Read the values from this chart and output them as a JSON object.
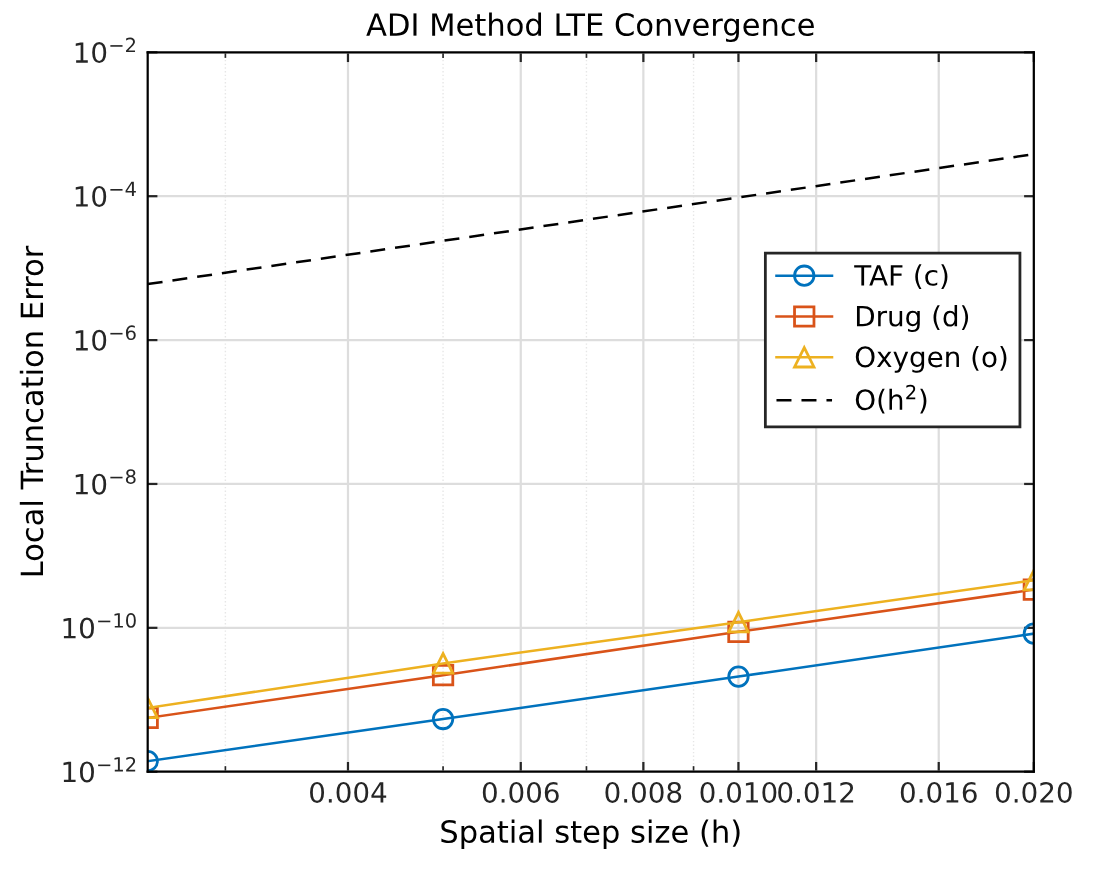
{
  "chart_data": {
    "type": "line",
    "title": "ADI Method LTE Convergence",
    "xlabel": "Spatial step size (h)",
    "ylabel": "Local Truncation Error",
    "log": "xy",
    "grid": true,
    "legend": "right",
    "x": [
      0.0025,
      0.005,
      0.01,
      0.02
    ],
    "xlim": [
      0.0025,
      0.02
    ],
    "xticks": [
      0.004,
      0.006,
      0.008,
      {
        "value": 0.01,
        "label": "0.010"
      },
      0.012,
      0.016,
      {
        "value": 0.02,
        "label": "0.020"
      }
    ],
    "ylim": [
      1e-12,
      0.01
    ],
    "yticks": [
      {
        "value": 1e-12,
        "label": "10$^{−12}$"
      },
      {
        "value": 1e-10,
        "label": "10$^{−10}$"
      },
      {
        "value": 1e-08,
        "label": "10$^{−8}$"
      },
      {
        "value": 1e-06,
        "label": "10$^{−6}$"
      },
      {
        "value": 0.0001,
        "label": "10$^{−4}$"
      },
      {
        "value": 0.01,
        "label": "10$^{−2}$"
      }
    ],
    "series": [
      {
        "name": "TAF (c)",
        "color": "#0072bd",
        "marker": "circle",
        "line_style": "solid",
        "values": [
          1.4e-12,
          5.4e-12,
          2.1e-11,
          8.3e-11
        ]
      },
      {
        "name": "Drug (d)",
        "color": "#d95319",
        "marker": "square",
        "line_style": "solid",
        "values": [
          5.6e-12,
          2.2e-11,
          8.8e-11,
          3.4e-10
        ]
      },
      {
        "name": "Oxygen (o)",
        "color": "#edb120",
        "marker": "triangle",
        "line_style": "solid",
        "values": [
          7.7e-12,
          3.2e-11,
          1.2e-10,
          4.6e-10
        ]
      },
      {
        "name": "O(h$^{2}$)",
        "color": "#000000",
        "marker": "none",
        "line_style": "dashed",
        "x": [
          0.0025,
          0.02
        ],
        "values": [
          6e-06,
          0.000384
        ]
      }
    ]
  }
}
